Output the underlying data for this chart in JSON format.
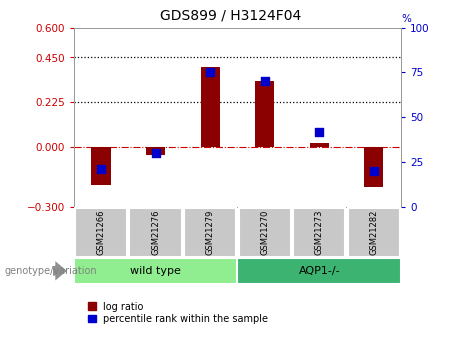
{
  "title": "GDS899 / H3124F04",
  "samples": [
    "GSM21266",
    "GSM21276",
    "GSM21279",
    "GSM21270",
    "GSM21273",
    "GSM21282"
  ],
  "log_ratios": [
    -0.19,
    -0.04,
    0.4,
    0.33,
    0.02,
    -0.2
  ],
  "percentile_ranks": [
    21,
    30,
    75,
    70,
    42,
    20
  ],
  "bar_color": "#8B0000",
  "dot_color": "#0000CD",
  "ylim_left": [
    -0.3,
    0.6
  ],
  "ylim_right": [
    0,
    100
  ],
  "yticks_left": [
    -0.3,
    0,
    0.225,
    0.45,
    0.6
  ],
  "yticks_right": [
    0,
    25,
    50,
    75,
    100
  ],
  "hlines": [
    0.225,
    0.45
  ],
  "bar_width": 0.35,
  "dot_size": 35,
  "sample_box_color": "#C8C8C8",
  "wt_color": "#90EE90",
  "aqp_color": "#3CB371",
  "legend_bar_label": "log ratio",
  "legend_dot_label": "percentile rank within the sample",
  "genotype_label": "genotype/variation"
}
